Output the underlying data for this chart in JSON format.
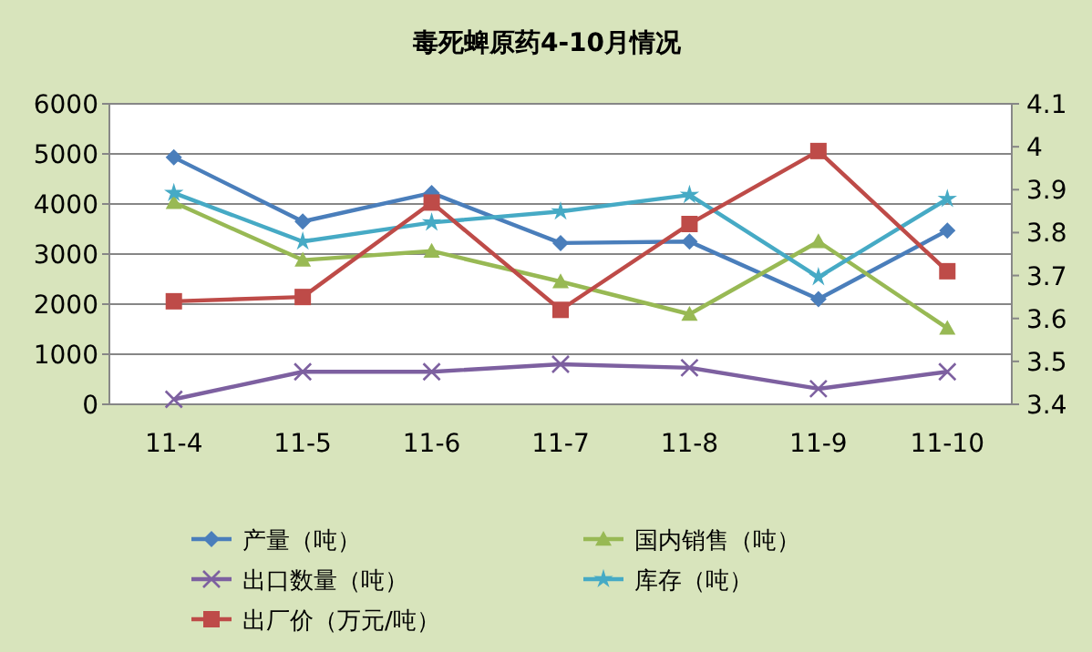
{
  "chart_data": {
    "type": "line",
    "title": "毒死蜱原药4-10月情况",
    "categories": [
      "11-4",
      "11-5",
      "11-6",
      "11-7",
      "11-8",
      "11-9",
      "11-10"
    ],
    "series": [
      {
        "name": "产量（吨）",
        "color": "#4a7ebb",
        "marker": "diamond",
        "values": [
          4930,
          3650,
          4220,
          3220,
          3250,
          2100,
          3470
        ]
      },
      {
        "name": "国内销售（吨）",
        "color": "#98b954",
        "marker": "triangle",
        "values": [
          4030,
          2880,
          3060,
          2450,
          1800,
          3250,
          1520
        ]
      },
      {
        "name": "出口数量（吨）",
        "color": "#7d60a0",
        "marker": "cross",
        "values": [
          100,
          650,
          650,
          800,
          730,
          310,
          650
        ]
      },
      {
        "name": "库存（吨）",
        "color": "#46aac5",
        "marker": "star",
        "values": [
          4220,
          3250,
          3630,
          3850,
          4180,
          2540,
          4100
        ]
      },
      {
        "name": "出厂价（万元/吨）",
        "color": "#be4b48",
        "marker": "square",
        "axis": "y2",
        "values": [
          3.64,
          3.65,
          3.87,
          3.62,
          3.82,
          3.99,
          3.71
        ]
      }
    ],
    "ylim": [
      0,
      6000
    ],
    "yticks": [
      0,
      1000,
      2000,
      3000,
      4000,
      5000,
      6000
    ],
    "y2lim": [
      3.4,
      4.1
    ],
    "y2ticks": [
      3.4,
      3.5,
      3.6,
      3.7,
      3.8,
      3.9,
      {
        "value": 4,
        "label": "4"
      },
      4.1
    ],
    "grid": "y",
    "legend": "bottom"
  }
}
